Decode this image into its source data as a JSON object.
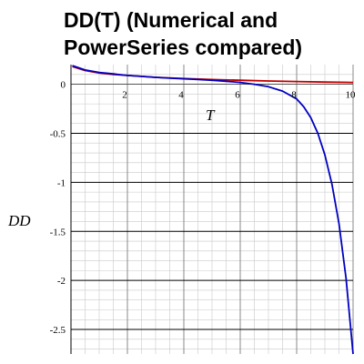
{
  "chart_data": {
    "type": "line",
    "title_lines": [
      "DD(T) (Numerical and",
      "PowerSeries compared)"
    ],
    "xlabel": "T",
    "ylabel": "DD",
    "xlim": [
      0,
      10
    ],
    "ylim": [
      -2.75,
      0.2
    ],
    "x_ticks": [
      2,
      4,
      6,
      8,
      10
    ],
    "x_tick_labels": [
      "2",
      "4",
      "6",
      "8",
      "10"
    ],
    "y_ticks": [
      0,
      -0.5,
      -1,
      -1.5,
      -2,
      -2.5
    ],
    "y_tick_labels": [
      "0",
      "-0.5",
      "-1",
      "-1.5",
      "-2",
      "-2.5"
    ],
    "grid": true,
    "legend": false,
    "series": [
      {
        "color": "#c00000",
        "x": [
          0.05,
          0.5,
          1,
          1.5,
          2,
          3,
          4,
          5,
          6,
          7,
          8,
          9,
          10
        ],
        "y": [
          0.18,
          0.14,
          0.115,
          0.1,
          0.09,
          0.07,
          0.058,
          0.048,
          0.04,
          0.033,
          0.027,
          0.022,
          0.018
        ]
      },
      {
        "color": "#0000c0",
        "x": [
          0.05,
          0.5,
          1,
          1.5,
          2,
          2.5,
          3,
          3.5,
          4,
          4.5,
          5,
          5.5,
          6,
          6.5,
          7,
          7.5,
          8,
          8.25,
          8.5,
          8.75,
          9,
          9.25,
          9.5,
          9.75,
          10
        ],
        "y": [
          0.19,
          0.145,
          0.12,
          0.105,
          0.09,
          0.08,
          0.07,
          0.062,
          0.055,
          0.048,
          0.04,
          0.03,
          0.018,
          0.0,
          -0.025,
          -0.07,
          -0.15,
          -0.23,
          -0.34,
          -0.5,
          -0.72,
          -1.02,
          -1.42,
          -1.98,
          -2.75
        ]
      }
    ]
  }
}
